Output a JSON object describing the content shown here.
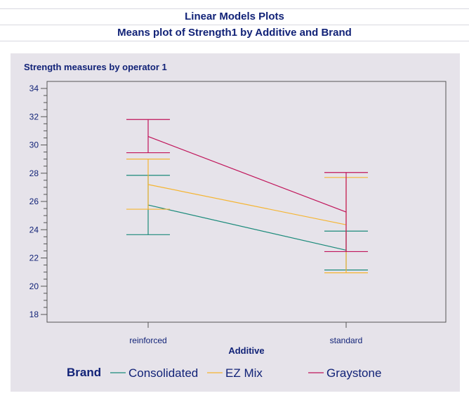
{
  "header": {
    "title": "Linear Models Plots",
    "subtitle": "Means plot of Strength1 by Additive and Brand"
  },
  "chart_data": {
    "type": "line",
    "title": "Strength measures by operator 1",
    "xlabel": "Additive",
    "ylabel": "",
    "categories": [
      "reinforced",
      "standard"
    ],
    "ylim": [
      18,
      34
    ],
    "yticks": [
      18,
      20,
      22,
      24,
      26,
      28,
      30,
      32,
      34
    ],
    "legend_title": "Brand",
    "legend_placement": "bottom",
    "grid": false,
    "error_bars": true,
    "series": [
      {
        "name": "Consolidated",
        "color": "#1a8a7a",
        "values": [
          25.75,
          22.55
        ],
        "lower": [
          23.65,
          21.15
        ],
        "upper": [
          27.85,
          23.9
        ]
      },
      {
        "name": "EZ Mix",
        "color": "#f5b532",
        "values": [
          27.2,
          24.35
        ],
        "lower": [
          25.45,
          20.95
        ],
        "upper": [
          29.0,
          27.7
        ]
      },
      {
        "name": "Graystone",
        "color": "#c0145a",
        "values": [
          30.6,
          25.25
        ],
        "lower": [
          29.45,
          22.45
        ],
        "upper": [
          31.8,
          28.05
        ]
      }
    ]
  }
}
